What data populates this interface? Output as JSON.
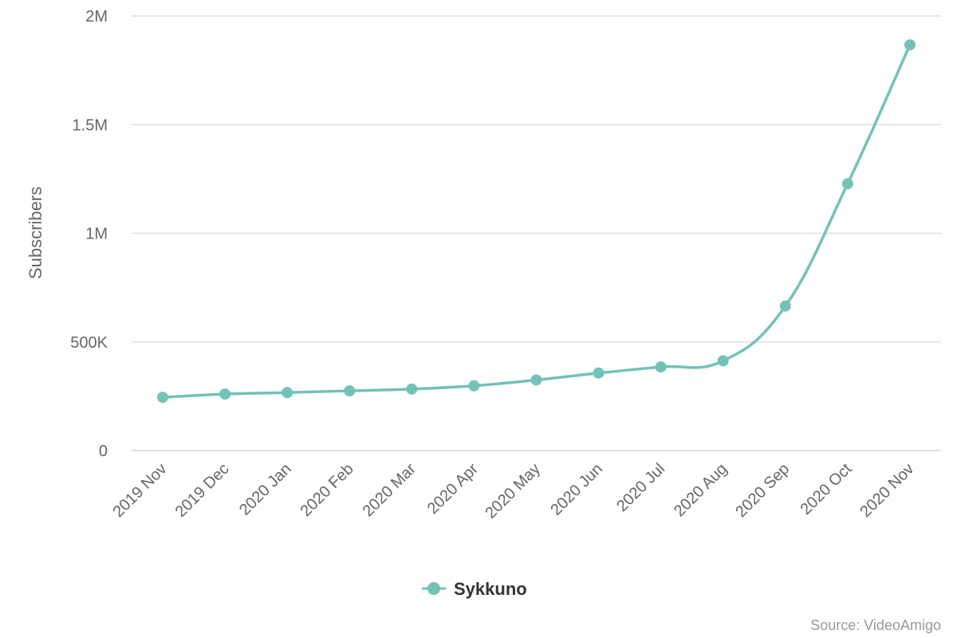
{
  "chart_data": {
    "type": "line",
    "x": [
      "2019 Nov",
      "2019 Dec",
      "2020 Jan",
      "2020 Feb",
      "2020 Mar",
      "2020 Apr",
      "2020 May",
      "2020 Jun",
      "2020 Jul",
      "2020 Aug",
      "2020 Sep",
      "2020 Oct",
      "2020 Nov"
    ],
    "series": [
      {
        "name": "Sykkuno",
        "color": "#72c2b8",
        "values": [
          245000,
          260000,
          267000,
          275000,
          283000,
          298000,
          325000,
          357000,
          385000,
          413000,
          665000,
          1228000,
          1867000
        ]
      }
    ],
    "ylabel": "Subscribers",
    "xlabel": "",
    "ylim": [
      0,
      2000000
    ],
    "y_ticks": [
      {
        "value": 0,
        "label": "0"
      },
      {
        "value": 500000,
        "label": "500K"
      },
      {
        "value": 1000000,
        "label": "1M"
      },
      {
        "value": 1500000,
        "label": "1.5M"
      },
      {
        "value": 2000000,
        "label": "2M"
      }
    ],
    "grid": true,
    "legend": "bottom-center",
    "credits": "Source: VideoAmigo"
  }
}
